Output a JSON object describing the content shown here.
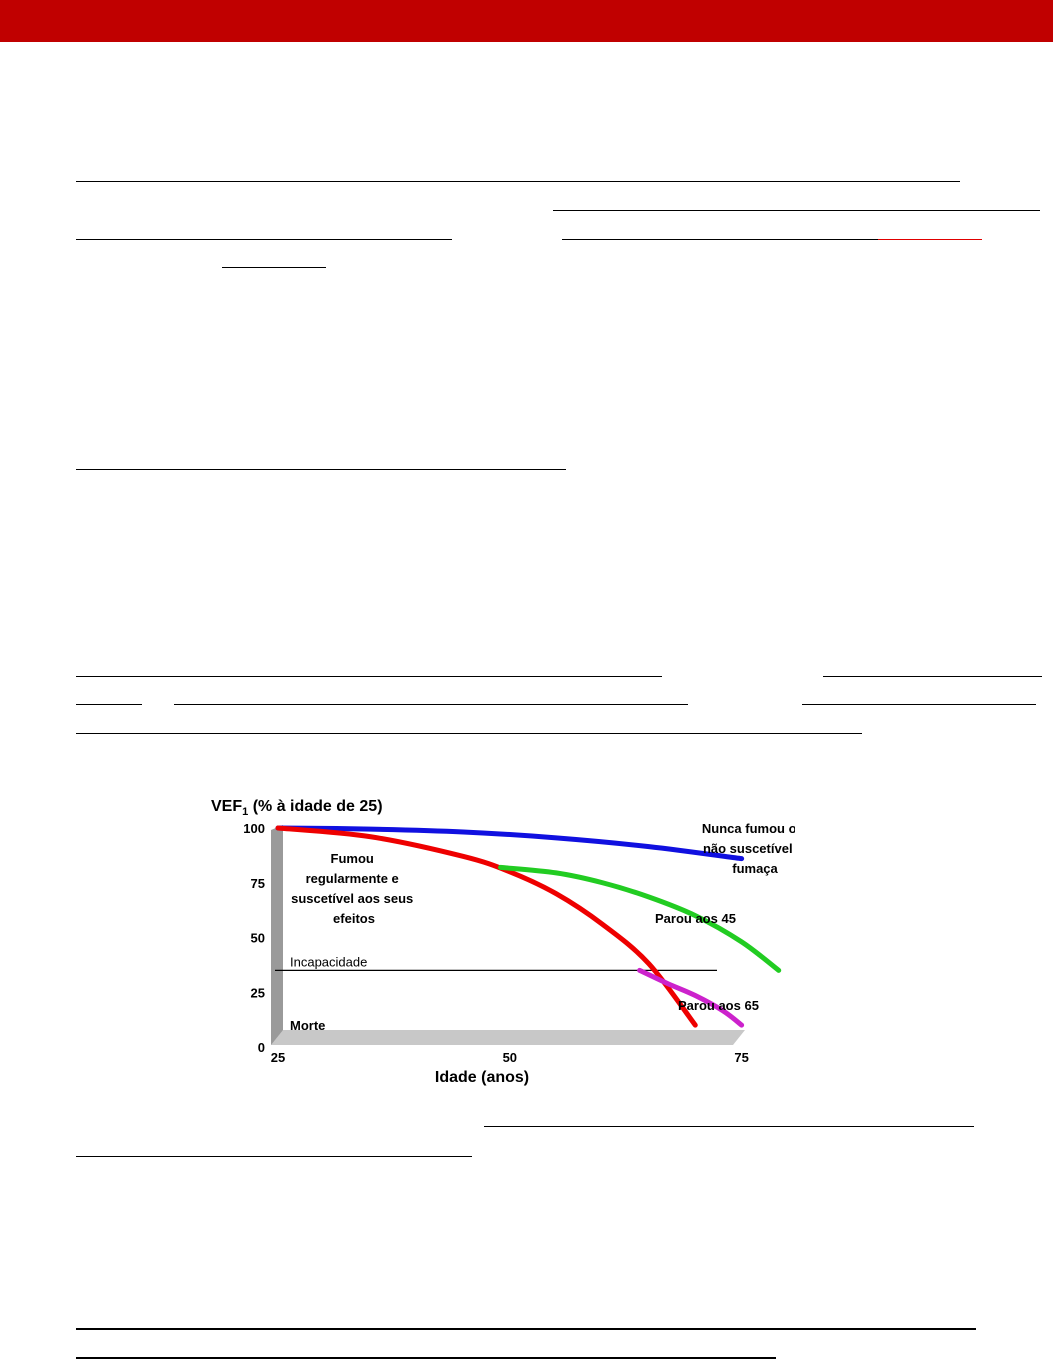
{
  "colors": {
    "header_bar": "#c00000",
    "never_smoked": "#1010e0",
    "smoker": "#ee0000",
    "stopped_45": "#22cc22",
    "stopped_65": "#cc22cc"
  },
  "chart_data": {
    "type": "line",
    "title": "VEF",
    "title_sub": "1",
    "title_rest": " (% à idade de 25)",
    "xlabel": "Idade (anos)",
    "ylabel": "",
    "xlim": [
      25,
      80
    ],
    "ylim": [
      0,
      100
    ],
    "x_ticks": [
      25,
      50,
      75
    ],
    "y_ticks": [
      0,
      25,
      50,
      75,
      100
    ],
    "grid": false,
    "reference_lines": [
      {
        "label": "Incapacidade",
        "y": 35
      },
      {
        "label": "Morte",
        "y": 10
      }
    ],
    "series": [
      {
        "name": "Nunca fumou ou não suscetível à fumaça",
        "label_lines": [
          "Nunca fumou ou",
          "não suscetível à",
          "fumaça"
        ],
        "x": [
          25,
          35,
          45,
          55,
          65,
          75
        ],
        "y": [
          100,
          99.5,
          98.2,
          95.5,
          91.5,
          86
        ]
      },
      {
        "name": "Fumou regularmente e suscetível aos seus efeitos",
        "label_lines": [
          "Fumou",
          "regularmente e",
          "suscetível aos seus",
          "efeitos"
        ],
        "x": [
          25,
          35,
          45,
          50,
          55,
          60,
          65,
          70
        ],
        "y": [
          100,
          96,
          87,
          80,
          70,
          56,
          38,
          10
        ]
      },
      {
        "name": "Parou aos 45",
        "label_lines": [
          "Parou aos 45"
        ],
        "x": [
          49,
          55,
          60,
          65,
          70,
          75,
          79
        ],
        "y": [
          82,
          79.5,
          75,
          68.5,
          60,
          48,
          35
        ]
      },
      {
        "name": "Parou aos 65",
        "label_lines": [
          "Parou aos 65"
        ],
        "x": [
          64,
          67,
          70,
          73,
          75
        ],
        "y": [
          35,
          29,
          23.5,
          16.5,
          10
        ]
      }
    ]
  }
}
